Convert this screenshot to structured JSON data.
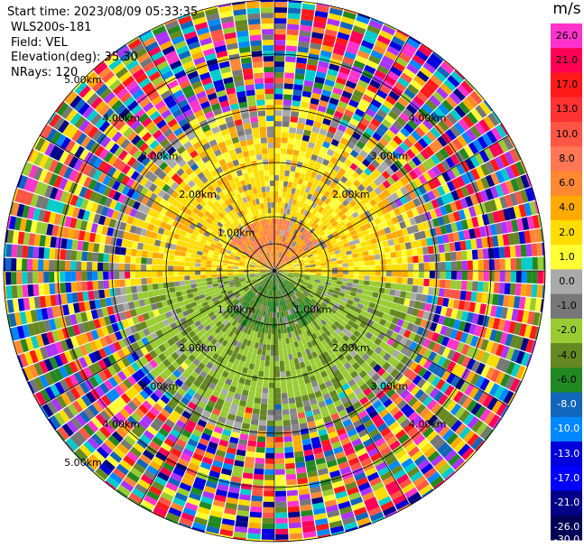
{
  "info": {
    "start_time": "Start time: 2023/08/09 05:33:35",
    "instrument": "WLS200s-181",
    "field": "Field: VEL",
    "elevation": "Elevation(deg): 35.30",
    "nrays": "NRays: 120"
  },
  "chart_data": {
    "type": "heatmap",
    "projection": "polar-ppi",
    "n_rays": 120,
    "max_range_km": 5.0,
    "range_rings_km": [
      0.5,
      1.0,
      2.0,
      3.0,
      4.0,
      5.0
    ],
    "spokes_deg": [
      0,
      30,
      60,
      90,
      120,
      150,
      180,
      210,
      240,
      270,
      300,
      330
    ],
    "ring_labels": [
      {
        "text": "1.00km",
        "ring_km": 1.0,
        "angle_deg": 315
      },
      {
        "text": "1.00km",
        "ring_km": 1.0,
        "angle_deg": 225
      },
      {
        "text": "1.00km",
        "ring_km": 1.0,
        "angle_deg": 135
      },
      {
        "text": "2.00km",
        "ring_km": 2.0,
        "angle_deg": 315
      },
      {
        "text": "2.00km",
        "ring_km": 2.0,
        "angle_deg": 45
      },
      {
        "text": "2.00km",
        "ring_km": 2.0,
        "angle_deg": 225
      },
      {
        "text": "2.00km",
        "ring_km": 2.0,
        "angle_deg": 135
      },
      {
        "text": "3.00km",
        "ring_km": 3.0,
        "angle_deg": 315
      },
      {
        "text": "3.00km",
        "ring_km": 3.0,
        "angle_deg": 45
      },
      {
        "text": "3.00km",
        "ring_km": 3.0,
        "angle_deg": 225
      },
      {
        "text": "3.00km",
        "ring_km": 3.0,
        "angle_deg": 135
      },
      {
        "text": "4.00km",
        "ring_km": 4.0,
        "angle_deg": 315
      },
      {
        "text": "4.00km",
        "ring_km": 4.0,
        "angle_deg": 45
      },
      {
        "text": "4.00km",
        "ring_km": 4.0,
        "angle_deg": 225
      },
      {
        "text": "4.00km",
        "ring_km": 4.0,
        "angle_deg": 135
      },
      {
        "text": "5.00km",
        "ring_km": 5.0,
        "angle_deg": 315
      },
      {
        "text": "5.00km",
        "ring_km": 5.0,
        "angle_deg": 225
      }
    ],
    "field": "VEL",
    "colorbar": {
      "unit": "m/s",
      "ticks": [
        "26.0",
        "21.0",
        "17.0",
        "13.0",
        "10.0",
        "8.0",
        "6.0",
        "4.0",
        "2.0",
        "1.0",
        "0.0",
        "-1.0",
        "-2.0",
        "-4.0",
        "-6.0",
        "-8.0",
        "-10.0",
        "-13.0",
        "-17.0",
        "-21.0",
        "-26.0",
        "-30.0"
      ],
      "bins": [
        {
          "color": "#ff33cc",
          "label_color": "#000000"
        },
        {
          "color": "#ff0055",
          "label_color": "#000000"
        },
        {
          "color": "#ff1a1a",
          "label_color": "#000000"
        },
        {
          "color": "#ff3333",
          "label_color": "#000000"
        },
        {
          "color": "#ff5544",
          "label_color": "#000000"
        },
        {
          "color": "#ff7755",
          "label_color": "#000000"
        },
        {
          "color": "#ff8833",
          "label_color": "#000000"
        },
        {
          "color": "#ffaa00",
          "label_color": "#000000"
        },
        {
          "color": "#ffdd00",
          "label_color": "#000000"
        },
        {
          "color": "#ffff33",
          "label_color": "#000000"
        },
        {
          "color": "#aaaaaa",
          "label_color": "#000000"
        },
        {
          "color": "#777777",
          "label_color": "#000000"
        },
        {
          "color": "#99cc33",
          "label_color": "#000000"
        },
        {
          "color": "#668822",
          "label_color": "#000000"
        },
        {
          "color": "#228822",
          "label_color": "#000000"
        },
        {
          "color": "#1166bb",
          "label_color": "#ffffff"
        },
        {
          "color": "#0088ff",
          "label_color": "#ffffff"
        },
        {
          "color": "#0000dd",
          "label_color": "#ffffff"
        },
        {
          "color": "#0000ff",
          "label_color": "#ffffff"
        },
        {
          "color": "#000088",
          "label_color": "#ffffff"
        },
        {
          "color": "#000055",
          "label_color": "#ffffff"
        }
      ]
    },
    "noise_palette": [
      "#ff33cc",
      "#ff0055",
      "#ff1a1a",
      "#ff5544",
      "#ff8833",
      "#ffaa00",
      "#ffdd00",
      "#ffff33",
      "#777777",
      "#99cc33",
      "#668822",
      "#228822",
      "#1166bb",
      "#0088ff",
      "#0000dd",
      "#000088",
      "#aa33ff",
      "#00cccc"
    ]
  }
}
